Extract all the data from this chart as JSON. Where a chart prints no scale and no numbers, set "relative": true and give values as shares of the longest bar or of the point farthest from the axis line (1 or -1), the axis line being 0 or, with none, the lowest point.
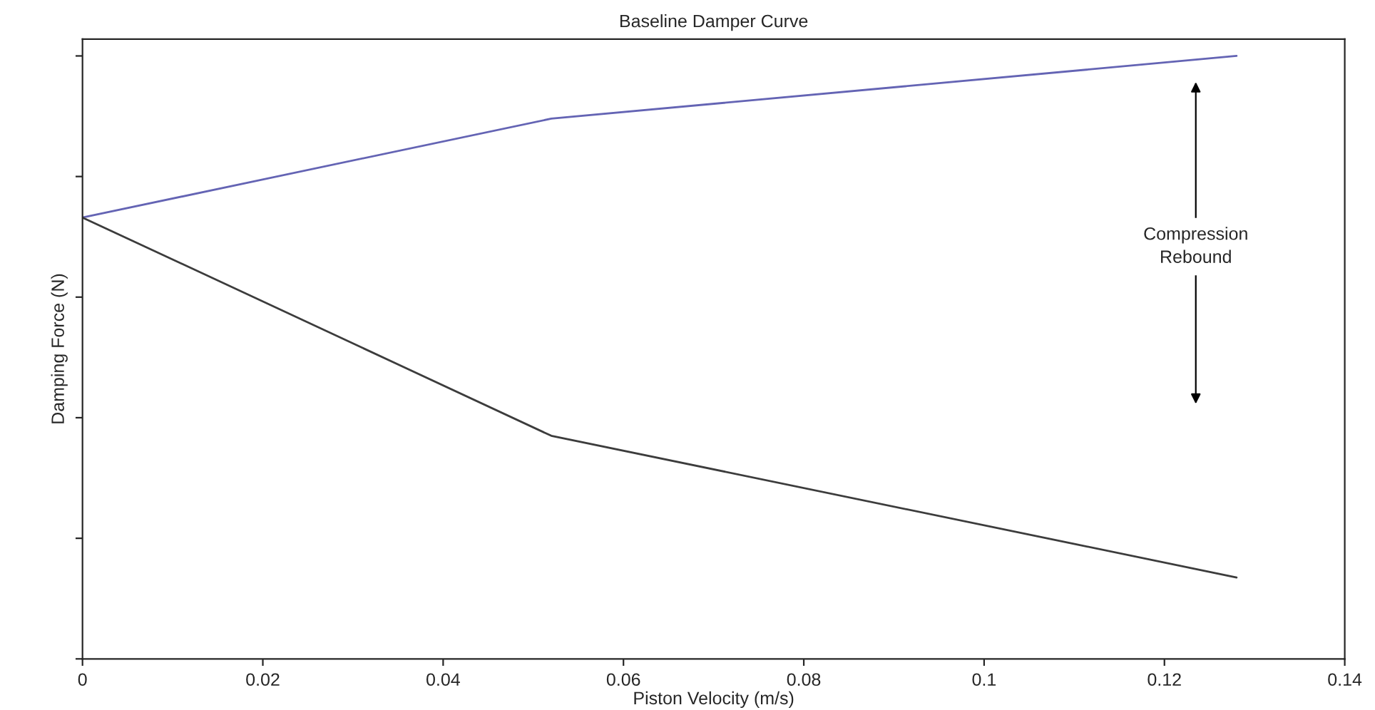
{
  "chart_data": {
    "type": "line",
    "title": "Baseline Damper Curve",
    "xlabel": "Piston Velocity (m/s)",
    "ylabel": "Damping Force (N)",
    "relative": true,
    "tick_labels": "x",
    "xlim": [
      0,
      0.14
    ],
    "xticks": [
      0,
      0.02,
      0.04,
      0.06,
      0.08,
      {
        "value": 0.1,
        "label": "0.1"
      },
      0.12,
      0.14
    ],
    "series": [
      {
        "color": "#6464b4",
        "x": [
          0,
          0.052,
          0.128
        ],
        "values": [
          0.732,
          0.896,
          1.0
        ]
      },
      {
        "color": "#3c3c3c",
        "x": [
          0,
          0.052,
          0.128
        ],
        "values": [
          0.732,
          0.37,
          0.135
        ]
      }
    ],
    "annotations": [
      "Compression\nRebound"
    ],
    "grid": false,
    "legend": false,
    "marker": "none",
    "line_style": "solid"
  }
}
